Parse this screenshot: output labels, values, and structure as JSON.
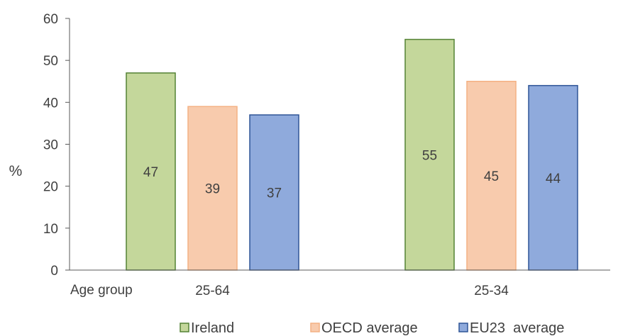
{
  "chart_data": {
    "type": "bar",
    "ylabel": "%",
    "xlabel": "Age group",
    "ylim": [
      0,
      60
    ],
    "yticks": [
      0,
      10,
      20,
      30,
      40,
      50,
      60
    ],
    "categories": [
      "25-64",
      "25-34"
    ],
    "series": [
      {
        "name": "Ireland",
        "values": [
          47,
          55
        ],
        "fill": "#c4d79b",
        "stroke": "#548235"
      },
      {
        "name": "OECD average",
        "values": [
          39,
          45
        ],
        "fill": "#f8cbad",
        "stroke": "#f4b183"
      },
      {
        "name": "EU23  average",
        "values": [
          37,
          44
        ],
        "fill": "#8faadc",
        "stroke": "#2f5597"
      }
    ],
    "legend_position": "bottom",
    "grid": false
  }
}
